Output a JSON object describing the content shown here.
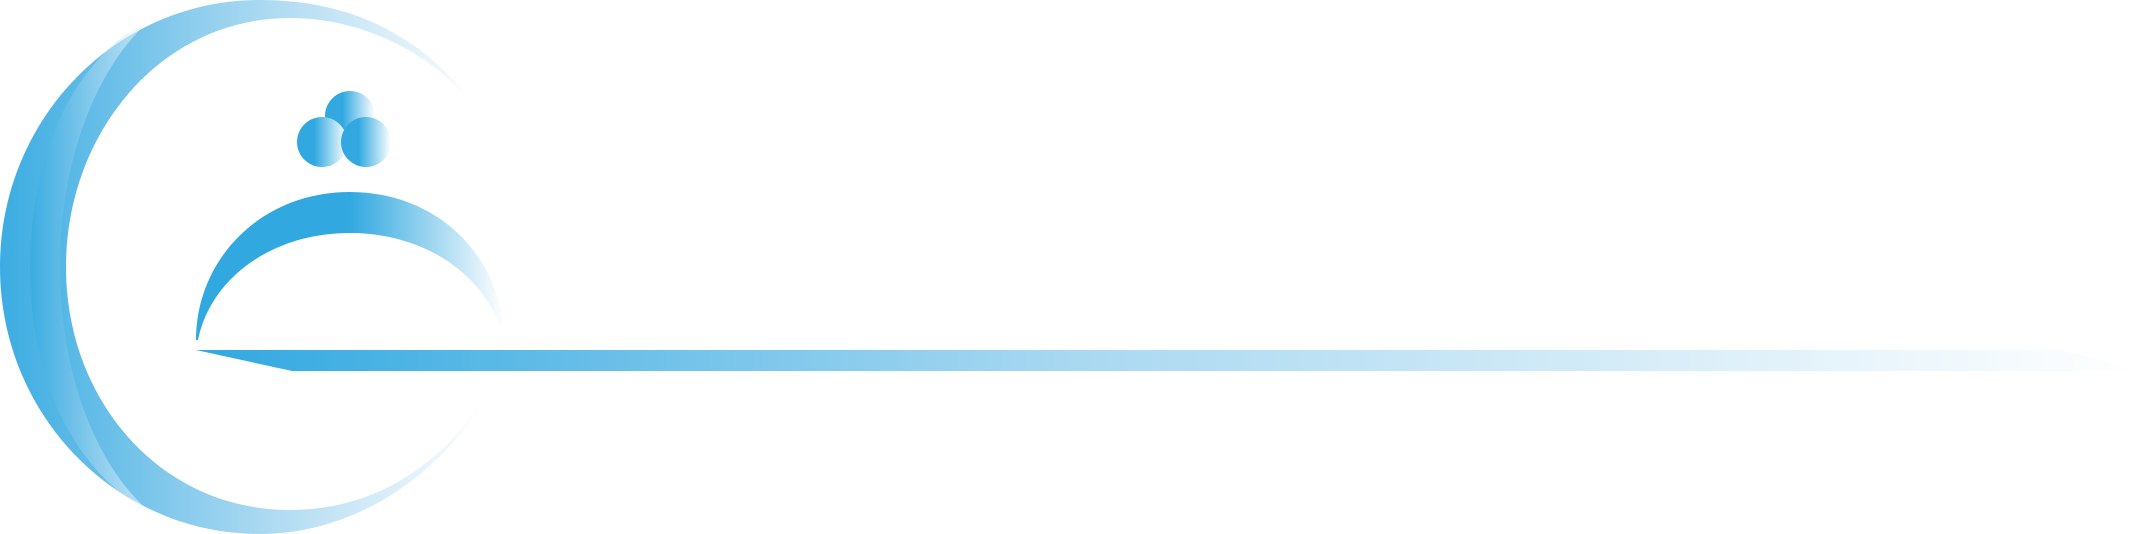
{
  "logo": {
    "icon_name": "cloche-service-bell-logo-icon",
    "colors": {
      "primary": "#31A8E0",
      "light": "#A9D8F1",
      "fade": "#FFFFFF"
    }
  }
}
